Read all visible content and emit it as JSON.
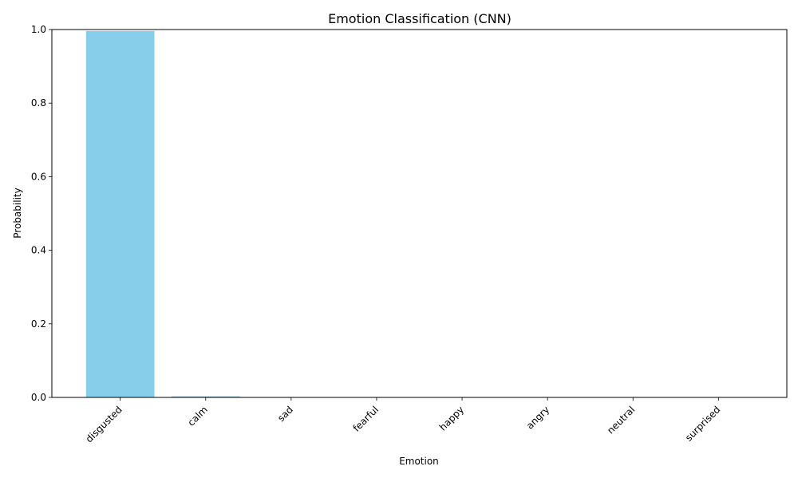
{
  "chart_data": {
    "type": "bar",
    "title": "Emotion Classification (CNN)",
    "xlabel": "Emotion",
    "ylabel": "Probability",
    "categories": [
      "disgusted",
      "calm",
      "sad",
      "fearful",
      "happy",
      "angry",
      "neutral",
      "surprised"
    ],
    "values": [
      0.996,
      0.003,
      0.0005,
      0.0003,
      0.0002,
      0.0002,
      0.0001,
      0.0001
    ],
    "ylim": [
      0,
      1
    ],
    "yticks": [
      "0.0",
      "0.2",
      "0.4",
      "0.6",
      "0.8",
      "1.0"
    ],
    "bar_color": "#87ceeb",
    "grid": false,
    "legend": "none"
  }
}
